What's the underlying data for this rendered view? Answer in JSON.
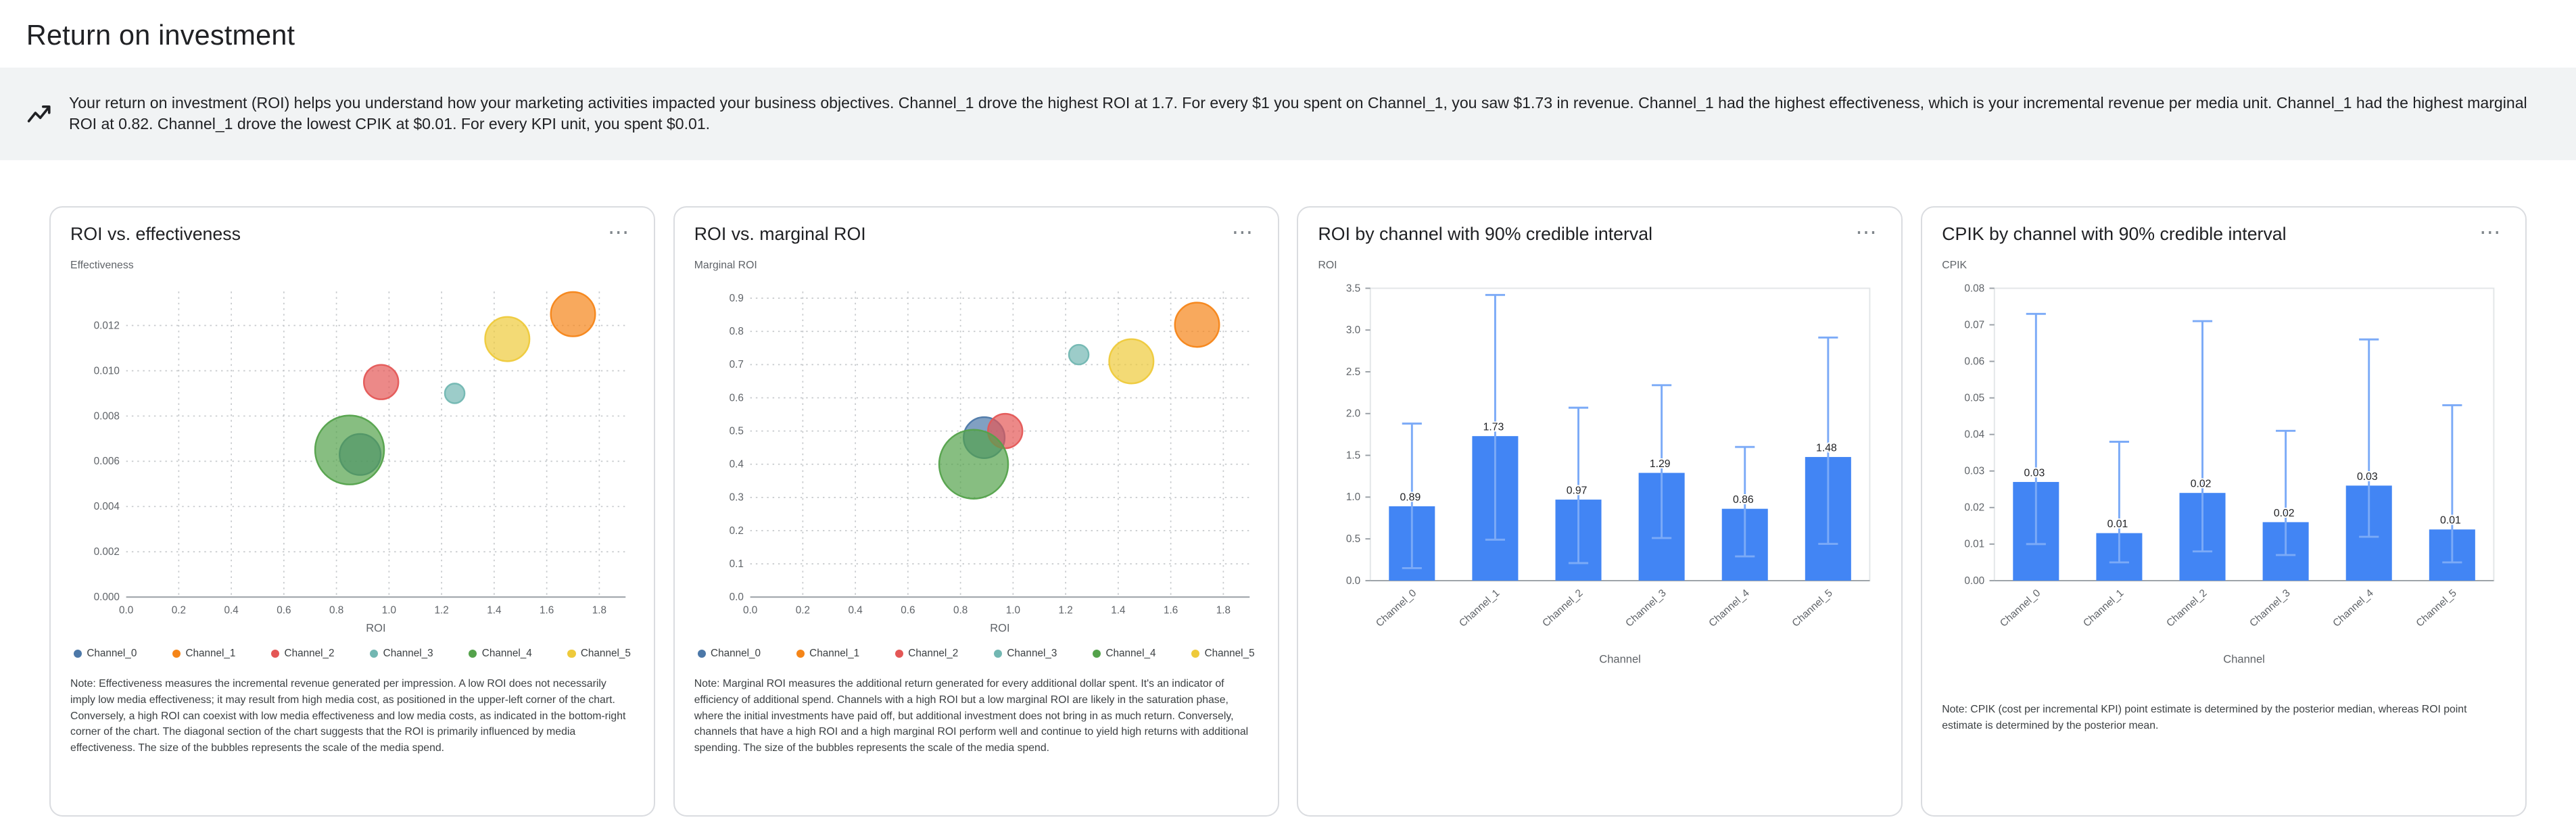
{
  "page": {
    "title": "Return on investment"
  },
  "insight": {
    "text": "Your return on investment (ROI) helps you understand how your marketing activities impacted your business objectives. Channel_1 drove the highest ROI at 1.7. For every $1 you spent on Channel_1, you saw $1.73 in revenue. Channel_1 had the highest effectiveness, which is your incremental revenue per media unit. Channel_1 had the highest marginal ROI at 0.82. Channel_1 drove the lowest CPIK at $0.01. For every KPI unit, you spent $0.01."
  },
  "ui": {
    "more_options_icon": "⋯"
  },
  "channels": [
    "Channel_0",
    "Channel_1",
    "Channel_2",
    "Channel_3",
    "Channel_4",
    "Channel_5"
  ],
  "channel_colors": [
    "#4c78a8",
    "#f58518",
    "#e45756",
    "#72b7b2",
    "#54a24b",
    "#eeca3b"
  ],
  "bar_color": "#4285f4",
  "ci_color": "#7baaf7",
  "chart_data": [
    {
      "type": "scatter",
      "title": "ROI vs. effectiveness",
      "xlabel": "ROI",
      "ylabel": "Effectiveness",
      "xlim": [
        0,
        1.9
      ],
      "ylim": [
        0,
        0.0135
      ],
      "xticks": [
        "0.0",
        "0.2",
        "0.4",
        "0.6",
        "0.8",
        "1.0",
        "1.2",
        "1.4",
        "1.6",
        "1.8"
      ],
      "yticks": [
        "0.000",
        "0.002",
        "0.004",
        "0.006",
        "0.008",
        "0.010",
        "0.012"
      ],
      "points": [
        {
          "channel": "Channel_0",
          "x": 0.89,
          "y": 0.0063,
          "r": 12.5
        },
        {
          "channel": "Channel_1",
          "x": 1.7,
          "y": 0.0125,
          "r": 13.5
        },
        {
          "channel": "Channel_2",
          "x": 0.97,
          "y": 0.0095,
          "r": 10.5
        },
        {
          "channel": "Channel_3",
          "x": 1.25,
          "y": 0.009,
          "r": 6
        },
        {
          "channel": "Channel_4",
          "x": 0.85,
          "y": 0.0065,
          "r": 21
        },
        {
          "channel": "Channel_5",
          "x": 1.45,
          "y": 0.0114,
          "r": 13.5
        }
      ],
      "note": "Note: Effectiveness measures the incremental revenue generated per impression. A low ROI does not necessarily imply low media effectiveness; it may result from high media cost, as positioned in the upper-left corner of the chart. Conversely, a high ROI can coexist with low media effectiveness and low media costs, as indicated in the bottom-right corner of the chart. The diagonal section of the chart suggests that the ROI is primarily influenced by media effectiveness. The size of the bubbles represents the scale of the media spend."
    },
    {
      "type": "scatter",
      "title": "ROI vs. marginal ROI",
      "xlabel": "ROI",
      "ylabel": "Marginal ROI",
      "xlim": [
        0,
        1.9
      ],
      "ylim": [
        0,
        0.92
      ],
      "xticks": [
        "0.0",
        "0.2",
        "0.4",
        "0.6",
        "0.8",
        "1.0",
        "1.2",
        "1.4",
        "1.6",
        "1.8"
      ],
      "yticks": [
        "0.0",
        "0.1",
        "0.2",
        "0.3",
        "0.4",
        "0.5",
        "0.6",
        "0.7",
        "0.8",
        "0.9"
      ],
      "points": [
        {
          "channel": "Channel_0",
          "x": 0.89,
          "y": 0.48,
          "r": 12.5
        },
        {
          "channel": "Channel_1",
          "x": 1.7,
          "y": 0.82,
          "r": 13.5
        },
        {
          "channel": "Channel_2",
          "x": 0.97,
          "y": 0.5,
          "r": 10.5
        },
        {
          "channel": "Channel_3",
          "x": 1.25,
          "y": 0.73,
          "r": 6
        },
        {
          "channel": "Channel_4",
          "x": 0.85,
          "y": 0.4,
          "r": 21
        },
        {
          "channel": "Channel_5",
          "x": 1.45,
          "y": 0.71,
          "r": 13.5
        }
      ],
      "note": "Note: Marginal ROI measures the additional return generated for every additional dollar spent. It's an indicator of efficiency of additional spend. Channels with a high ROI but a low marginal ROI are likely in the saturation phase, where the initial investments have paid off, but additional investment does not bring in as much return. Conversely, channels that have a high ROI and a high marginal ROI perform well and continue to yield high returns with additional spending. The size of the bubbles represents the scale of the media spend."
    },
    {
      "type": "bar",
      "title": "ROI by channel with 90% credible interval",
      "xlabel": "Channel",
      "ylabel": "ROI",
      "ylim": [
        0,
        3.5
      ],
      "yticks": [
        "0.0",
        "0.5",
        "1.0",
        "1.5",
        "2.0",
        "2.5",
        "3.0",
        "3.5"
      ],
      "categories": [
        "Channel_0",
        "Channel_1",
        "Channel_2",
        "Channel_3",
        "Channel_4",
        "Channel_5"
      ],
      "values": [
        0.89,
        1.73,
        0.97,
        1.29,
        0.86,
        1.48
      ],
      "labels": [
        "0.89",
        "1.73",
        "0.97",
        "1.29",
        "0.86",
        "1.48"
      ],
      "ci_low": [
        0.15,
        0.49,
        0.21,
        0.51,
        0.29,
        0.44
      ],
      "ci_high": [
        1.88,
        3.42,
        2.07,
        2.34,
        1.6,
        2.91
      ]
    },
    {
      "type": "bar",
      "title": "CPIK by channel with 90% credible interval",
      "xlabel": "Channel",
      "ylabel": "CPIK",
      "ylim": [
        0,
        0.08
      ],
      "yticks": [
        "0.00",
        "0.01",
        "0.02",
        "0.03",
        "0.04",
        "0.05",
        "0.06",
        "0.07",
        "0.08"
      ],
      "categories": [
        "Channel_0",
        "Channel_1",
        "Channel_2",
        "Channel_3",
        "Channel_4",
        "Channel_5"
      ],
      "values": [
        0.027,
        0.013,
        0.024,
        0.016,
        0.026,
        0.014
      ],
      "labels": [
        "0.03",
        "0.01",
        "0.02",
        "0.02",
        "0.03",
        "0.01"
      ],
      "ci_low": [
        0.01,
        0.005,
        0.008,
        0.007,
        0.012,
        0.005
      ],
      "ci_high": [
        0.073,
        0.038,
        0.071,
        0.041,
        0.066,
        0.048
      ],
      "note": "Note: CPIK (cost per incremental KPI) point estimate is determined by the posterior median, whereas ROI point estimate is determined by the posterior mean."
    }
  ]
}
